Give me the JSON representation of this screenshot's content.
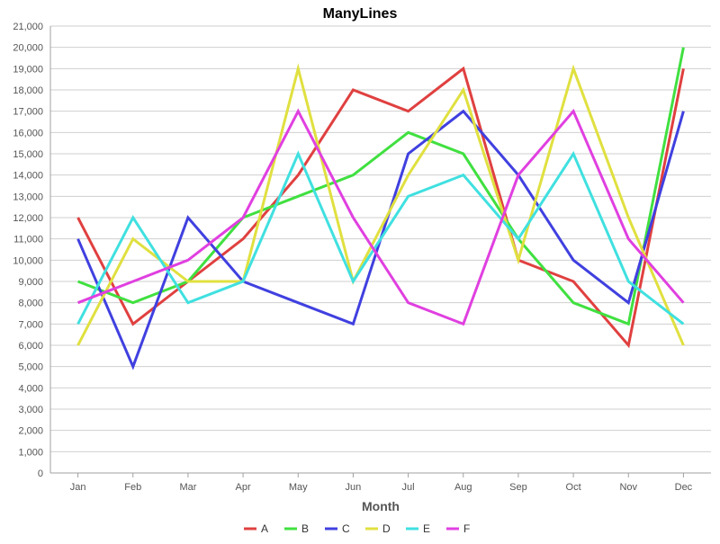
{
  "chart_data": {
    "type": "line",
    "title": "ManyLines",
    "xlabel": "Month",
    "ylabel": "",
    "categories": [
      "Jan",
      "Feb",
      "Mar",
      "Apr",
      "May",
      "Jun",
      "Jul",
      "Aug",
      "Sep",
      "Oct",
      "Nov",
      "Dec"
    ],
    "ylim": [
      0,
      21000
    ],
    "ytick_step": 1000,
    "grid": true,
    "legend_position": "bottom",
    "series": [
      {
        "name": "A",
        "color": "#e04040",
        "values": [
          12000,
          7000,
          9000,
          11000,
          14000,
          18000,
          17000,
          19000,
          10000,
          9000,
          6000,
          19000
        ]
      },
      {
        "name": "B",
        "color": "#40e040",
        "values": [
          9000,
          8000,
          9000,
          12000,
          13000,
          14000,
          16000,
          15000,
          11000,
          8000,
          7000,
          20000
        ]
      },
      {
        "name": "C",
        "color": "#4040e0",
        "values": [
          11000,
          5000,
          12000,
          9000,
          8000,
          7000,
          15000,
          17000,
          14000,
          10000,
          8000,
          17000
        ]
      },
      {
        "name": "D",
        "color": "#e0e040",
        "values": [
          6000,
          11000,
          9000,
          9000,
          19000,
          9000,
          14000,
          18000,
          10000,
          19000,
          12000,
          6000
        ]
      },
      {
        "name": "E",
        "color": "#40e0e0",
        "values": [
          7000,
          12000,
          8000,
          9000,
          15000,
          9000,
          13000,
          14000,
          11000,
          15000,
          9000,
          7000
        ]
      },
      {
        "name": "F",
        "color": "#e040e0",
        "values": [
          8000,
          9000,
          10000,
          12000,
          17000,
          12000,
          8000,
          7000,
          14000,
          17000,
          11000,
          8000
        ]
      }
    ]
  }
}
